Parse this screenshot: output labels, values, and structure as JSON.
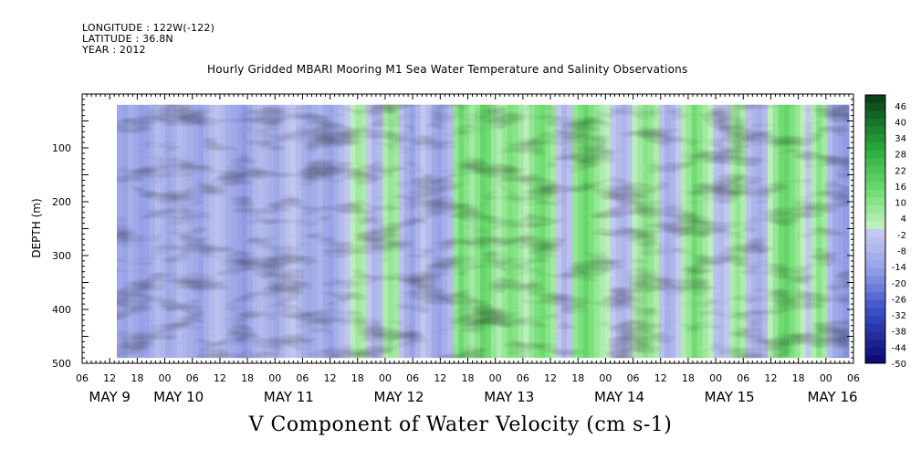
{
  "header": {
    "longitude": "LONGITUDE : 122W(-122)",
    "latitude": "LATITUDE : 36.8N",
    "year": "YEAR : 2012"
  },
  "chart_data": {
    "type": "heatmap",
    "title": "Hourly Gridded MBARI Mooring M1 Sea Water Temperature and Salinity Observations",
    "subtitle": "V Component of Water Velocity (cm s-1)",
    "ylabel": "DEPTH (m)",
    "ylim": [
      500,
      0
    ],
    "y_ticks": [
      100,
      200,
      300,
      400,
      500
    ],
    "x_range_hours": [
      "2012-05-09 06:00",
      "2012-05-16 06:00"
    ],
    "x_hour_ticks": [
      "06",
      "12",
      "18",
      "00",
      "06",
      "12",
      "18",
      "00",
      "06",
      "12",
      "18",
      "00",
      "06",
      "12",
      "18",
      "00",
      "06",
      "12",
      "18",
      "00",
      "06",
      "12",
      "18",
      "00",
      "06",
      "12",
      "18",
      "00",
      "06"
    ],
    "x_day_labels": [
      "MAY 9",
      "MAY 10",
      "MAY 11",
      "MAY 12",
      "MAY 13",
      "MAY 14",
      "MAY 15",
      "MAY 16"
    ],
    "colorbar": {
      "levels": [
        "-50",
        "-44",
        "-38",
        "-32",
        "-26",
        "-20",
        "-14",
        "-8",
        "-2",
        "4",
        "10",
        "16",
        "22",
        "28",
        "34",
        "40",
        "46"
      ],
      "min": -50,
      "max": 50
    },
    "approx_column_means_cm_s": [
      -12,
      -14,
      -10,
      -12,
      -15,
      -14,
      -10,
      -6,
      -8,
      -12,
      -10,
      -6,
      -8,
      -10,
      -12,
      -14,
      -10,
      -6,
      -4,
      -6,
      -10,
      -12,
      -14,
      -16,
      -12,
      -8,
      -6,
      -8,
      -10,
      -12,
      -8,
      -4,
      -2,
      -6,
      -10,
      -12,
      -10,
      -8,
      -12,
      -14,
      -10,
      -6,
      -2,
      2,
      6,
      4,
      -2,
      -8,
      -6,
      4,
      8,
      6,
      -4,
      -10,
      -14,
      -8,
      -2,
      -6,
      -12,
      -14,
      -10,
      -6,
      8,
      14,
      10,
      6,
      10,
      16,
      14,
      8,
      4,
      8,
      12,
      10,
      6,
      2,
      8,
      12,
      14,
      10,
      6,
      -2,
      -8,
      -4,
      8,
      12,
      16,
      12,
      8,
      4,
      2,
      -2,
      -6,
      -8,
      -4,
      2,
      6,
      10,
      8,
      4,
      -4,
      -10,
      -8,
      -2,
      4,
      8,
      14,
      10,
      6,
      2,
      -4,
      -6,
      -2,
      4,
      8,
      4,
      -4,
      -8,
      -10,
      -6,
      2,
      8,
      14,
      16,
      12,
      8,
      2,
      -2,
      4,
      10,
      6,
      -6,
      -12,
      -14,
      -16
    ]
  }
}
